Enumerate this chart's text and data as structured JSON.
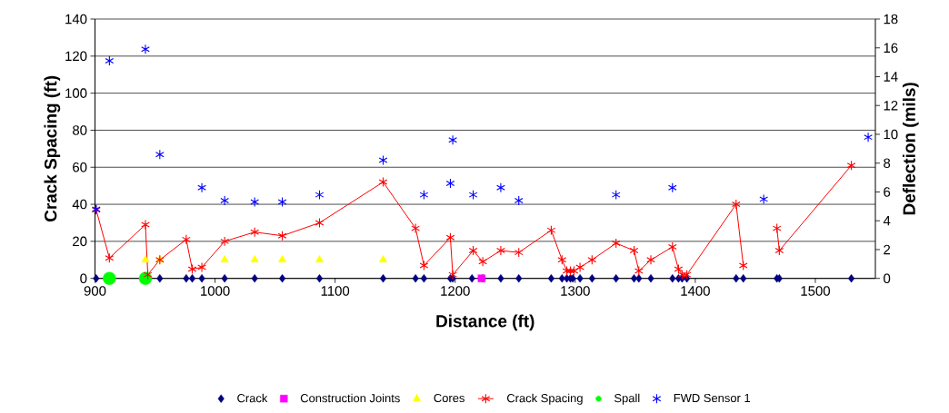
{
  "chart_data": {
    "type": "scatter",
    "xlabel": "Distance (ft)",
    "ylabel": "Crack Spacing (ft)",
    "y2label": "Deflection (mils)",
    "xlim": [
      900,
      1550
    ],
    "xticks": [
      900,
      1000,
      1100,
      1200,
      1300,
      1400,
      1500
    ],
    "ylim": [
      0,
      140
    ],
    "yticks": [
      0,
      20,
      40,
      60,
      80,
      100,
      120,
      140
    ],
    "y2lim": [
      0,
      18
    ],
    "y2ticks": [
      0,
      2,
      4,
      6,
      8,
      10,
      12,
      14,
      16,
      18
    ],
    "grid": "y",
    "legend": "bottom",
    "series": [
      {
        "name": "Crack",
        "marker": "diamond",
        "color": "#000080",
        "x": [
          901,
          954,
          976,
          981,
          989,
          1008,
          1033,
          1056,
          1087,
          1140,
          1167,
          1174,
          1196,
          1198,
          1214,
          1223,
          1238,
          1253,
          1280,
          1289,
          1293,
          1296,
          1298,
          1304,
          1314,
          1334,
          1349,
          1353,
          1363,
          1381,
          1386,
          1389,
          1393,
          1434,
          1440,
          1468,
          1470,
          1530
        ],
        "values": [
          0,
          0,
          0,
          0,
          0,
          0,
          0,
          0,
          0,
          0,
          0,
          0,
          0,
          0,
          0,
          0,
          0,
          0,
          0,
          0,
          0,
          0,
          0,
          0,
          0,
          0,
          0,
          0,
          0,
          0,
          0,
          0,
          0,
          0,
          0,
          0,
          0,
          0
        ]
      },
      {
        "name": "Construction Joints",
        "marker": "square",
        "color": "#ff00ff",
        "x": [
          1222
        ],
        "values": [
          0
        ]
      },
      {
        "name": "Cores",
        "marker": "triangle",
        "color": "#ffff00",
        "x": [
          942,
          954,
          1008,
          1033,
          1056,
          1087,
          1140
        ],
        "values": [
          10,
          10,
          10,
          10,
          10,
          10,
          10
        ]
      },
      {
        "name": "Crack Spacing",
        "type": "line",
        "marker": "cross",
        "line_style": "solid",
        "color": "#ff0000",
        "x": [
          901,
          912,
          942,
          944,
          954,
          976,
          981,
          989,
          1008,
          1033,
          1056,
          1087,
          1140,
          1167,
          1174,
          1196,
          1198,
          1215,
          1223,
          1238,
          1253,
          1280,
          1289,
          1293,
          1296,
          1299,
          1304,
          1314,
          1334,
          1349,
          1353,
          1363,
          1381,
          1386,
          1389,
          1393,
          1434,
          1440,
          1457,
          1468,
          1470,
          1530
        ],
        "values": [
          37,
          11,
          29,
          2,
          10,
          21,
          5,
          6,
          20,
          25,
          23,
          30,
          52,
          27,
          7,
          22,
          2,
          15,
          9,
          15,
          14,
          26,
          10,
          4,
          4,
          4,
          6,
          10,
          19,
          15,
          4,
          10,
          17,
          5,
          2,
          2,
          40,
          7,
          null,
          27,
          15,
          61
        ]
      },
      {
        "name": "Spall",
        "marker": "circle",
        "color": "#00ff00",
        "x": [
          912,
          942
        ],
        "values": [
          0,
          0
        ]
      },
      {
        "name": "FWD Sensor 1",
        "marker": "cross",
        "color": "#0000ff",
        "axis": "y2",
        "x": [
          901,
          912,
          942,
          954,
          989,
          1008,
          1033,
          1056,
          1087,
          1140,
          1174,
          1196,
          1198,
          1215,
          1238,
          1253,
          1334,
          1381,
          1457,
          1544
        ],
        "values": [
          4.8,
          15.1,
          15.9,
          8.6,
          6.3,
          5.4,
          5.3,
          5.3,
          5.8,
          8.2,
          5.8,
          6.6,
          9.6,
          5.8,
          6.3,
          5.4,
          5.8,
          6.3,
          5.5,
          9.8
        ]
      }
    ]
  }
}
